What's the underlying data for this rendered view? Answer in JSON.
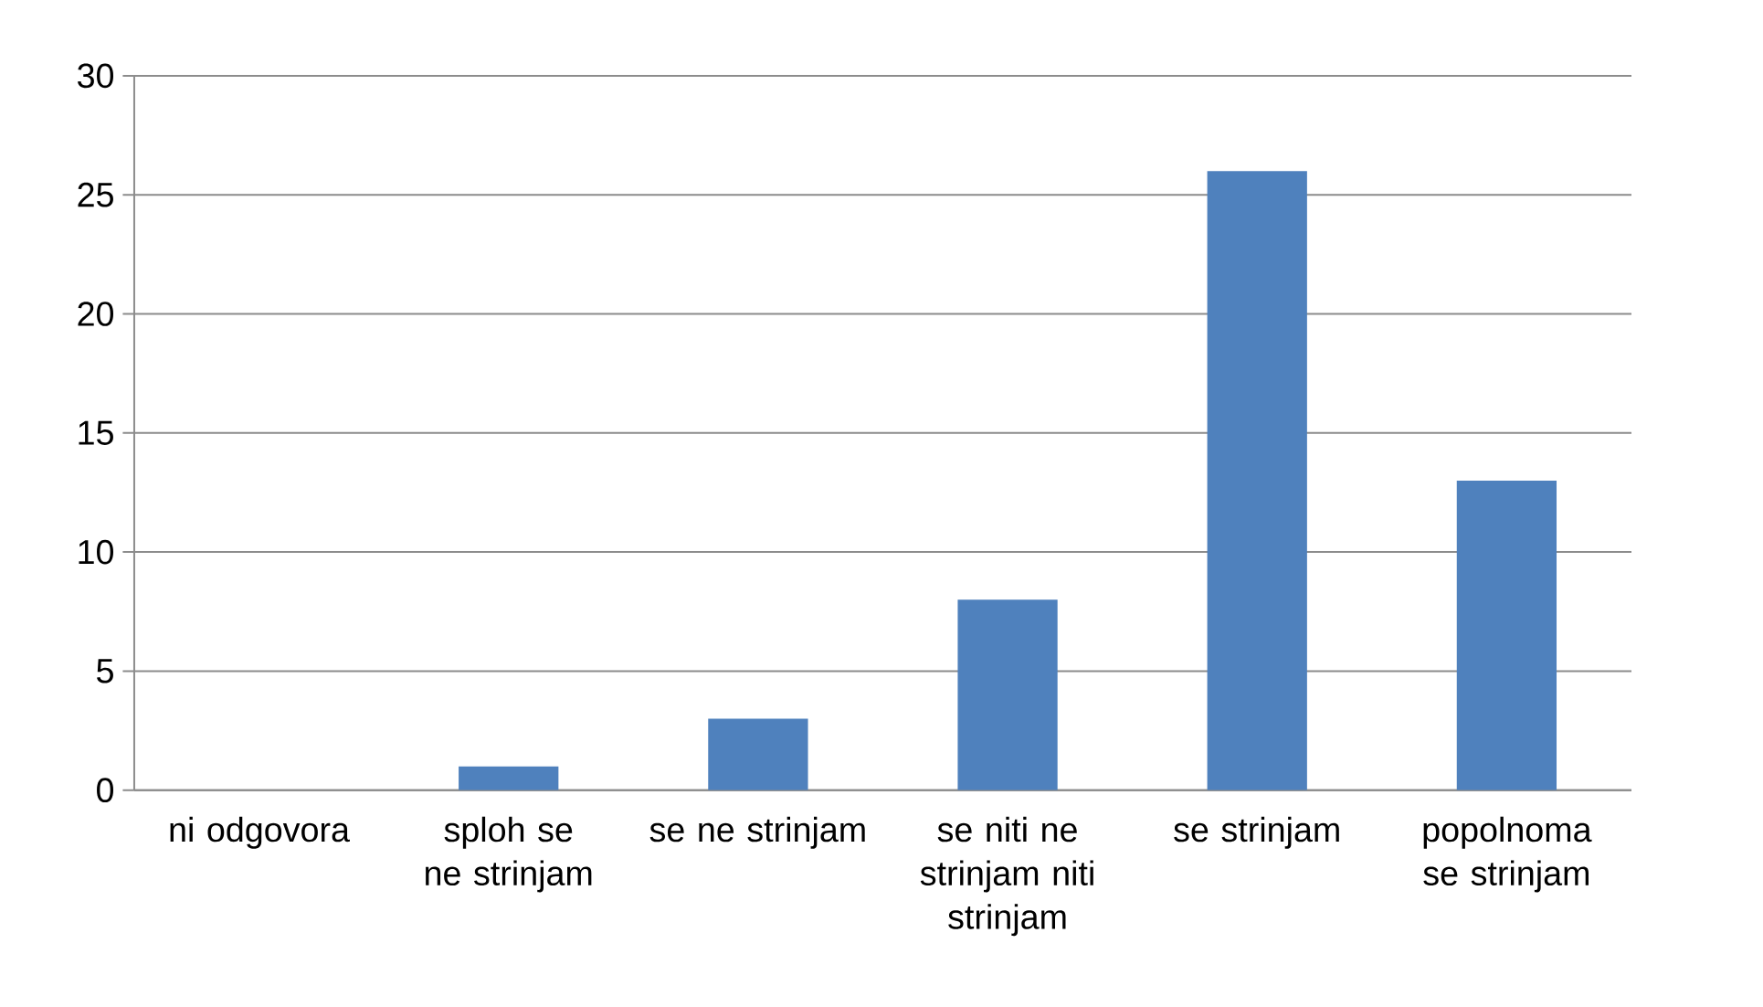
{
  "chart_data": {
    "type": "bar",
    "categories": [
      "ni odgovora",
      "sploh se ne strinjam",
      "se ne strinjam",
      "se niti ne strinjam niti strinjam",
      "se strinjam",
      "popolnoma se strinjam"
    ],
    "values": [
      0,
      1,
      3,
      8,
      26,
      13
    ],
    "color": "#4f81bd",
    "ylim": [
      0,
      30
    ],
    "yticks": [
      0,
      5,
      10,
      15,
      20,
      25,
      30
    ],
    "grid": "y"
  }
}
